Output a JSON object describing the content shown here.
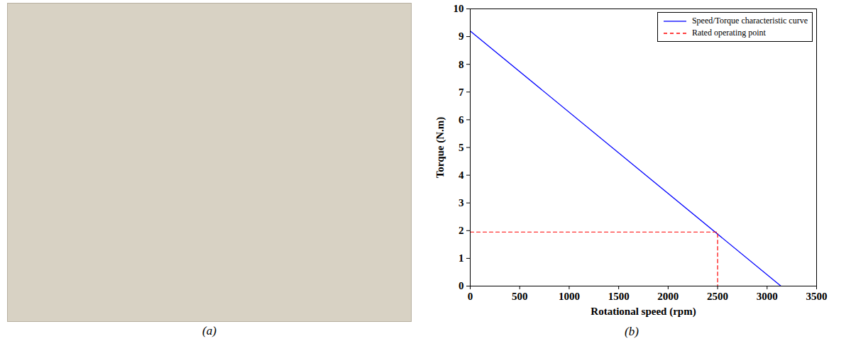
{
  "photo_caption": "(a)",
  "chart_data": {
    "type": "line",
    "caption": "(b)",
    "xlabel": "Rotational speed (rpm)",
    "ylabel": "Torque (N.m)",
    "xlim": [
      0,
      3500
    ],
    "xticks": [
      0,
      500,
      1000,
      1500,
      2000,
      2500,
      3000,
      3500
    ],
    "ylim": [
      0,
      10
    ],
    "yticks": [
      0,
      1,
      2,
      3,
      4,
      5,
      6,
      7,
      8,
      9,
      10
    ],
    "grid": false,
    "legend": "top-right",
    "series": [
      {
        "name": "Speed/Torque characteristic curve",
        "color": "#0000ff",
        "line_style": "solid",
        "x": [
          0,
          3140
        ],
        "values": [
          9.2,
          0
        ]
      },
      {
        "name": "Rated operating point",
        "color": "#ff0000",
        "line_style": "dashed",
        "x": [
          0,
          2500,
          2500
        ],
        "values": [
          1.95,
          1.95,
          0
        ]
      }
    ]
  }
}
